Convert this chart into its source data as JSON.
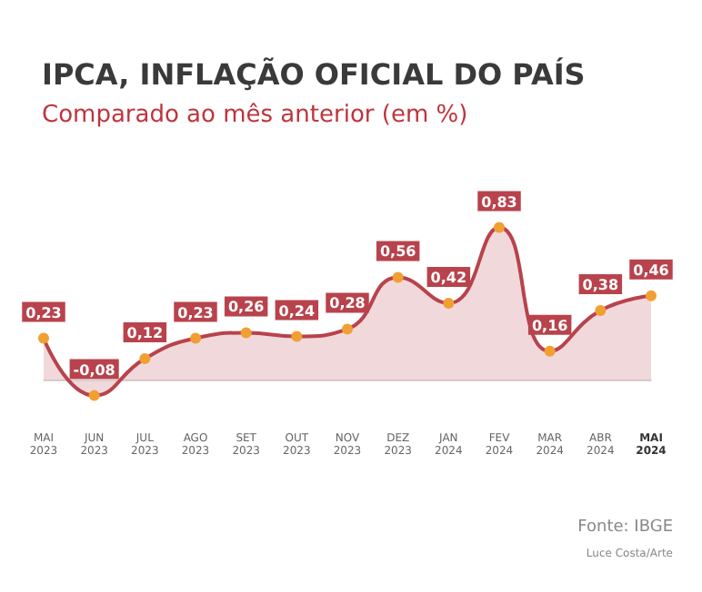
{
  "chart_data": {
    "type": "area",
    "title": "IPCA, INFLAÇÃO OFICIAL DO PAÍS",
    "subtitle": "Comparado ao mês anterior (em %)",
    "categories": [
      "MAI\n2023",
      "JUN\n2023",
      "JUL\n2023",
      "AGO\n2023",
      "SET\n2023",
      "OUT\n2023",
      "NOV\n2023",
      "DEZ\n2023",
      "JAN\n2024",
      "FEV\n2024",
      "MAR\n2024",
      "ABR\n2024",
      "MAI\n2024"
    ],
    "series": [
      {
        "color": "#b8434c",
        "colors": [
          "#f0a033",
          "#f0a033",
          "#f0a033",
          "#f0a033",
          "#f0a033",
          "#f0a033",
          "#f0a033",
          "#f0a033",
          "#f0a033",
          "#f0a033",
          "#f0a033",
          "#f0a033",
          "#f0a033"
        ],
        "values": [
          0.23,
          -0.08,
          0.12,
          0.23,
          0.26,
          0.24,
          0.28,
          0.56,
          0.42,
          0.83,
          0.16,
          0.38,
          0.46
        ],
        "value_labels": [
          "0,23",
          "-0,08",
          "0,12",
          "0,23",
          "0,26",
          "0,24",
          "0,28",
          "0,56",
          "0,42",
          "0,83",
          "0,16",
          "0,38",
          "0,46"
        ]
      }
    ],
    "marker": "circle",
    "annotations": [
      "Fonte: IBGE",
      "Luce Costa/Arte"
    ]
  }
}
